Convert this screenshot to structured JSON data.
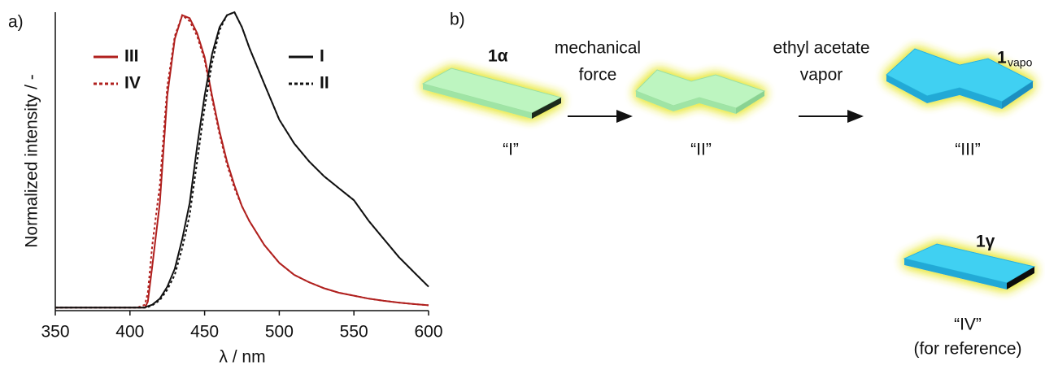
{
  "panel_a_label": "a)",
  "chart_data": {
    "type": "line",
    "x_label": "λ / nm",
    "y_label": "Normalized intensity / -",
    "xlim": [
      350,
      600
    ],
    "ylim": [
      0,
      1
    ],
    "xticks": [
      350,
      400,
      450,
      500,
      550,
      600
    ],
    "x": [
      350,
      360,
      370,
      380,
      390,
      400,
      405,
      410,
      412,
      415,
      420,
      425,
      430,
      435,
      440,
      445,
      450,
      455,
      460,
      465,
      470,
      475,
      480,
      490,
      500,
      510,
      520,
      530,
      540,
      550,
      560,
      570,
      580,
      590,
      600
    ],
    "series": [
      {
        "name": "III",
        "color": "#b0201e",
        "dash": false,
        "values": [
          0.01,
          0.01,
          0.01,
          0.01,
          0.01,
          0.01,
          0.01,
          0.01,
          0.03,
          0.15,
          0.36,
          0.72,
          0.91,
          0.99,
          0.98,
          0.93,
          0.85,
          0.72,
          0.6,
          0.5,
          0.42,
          0.35,
          0.3,
          0.22,
          0.16,
          0.12,
          0.095,
          0.075,
          0.06,
          0.05,
          0.04,
          0.033,
          0.027,
          0.022,
          0.018
        ]
      },
      {
        "name": "IV",
        "color": "#b0201e",
        "dash": true,
        "values": [
          0.01,
          0.01,
          0.01,
          0.01,
          0.01,
          0.01,
          0.01,
          0.02,
          0.06,
          0.22,
          0.42,
          0.75,
          0.92,
          0.99,
          0.97,
          0.92,
          0.84,
          0.71,
          0.59,
          0.49,
          0.41,
          0.35,
          0.3,
          0.22,
          0.16,
          0.12,
          0.095,
          0.075,
          0.06,
          0.05,
          0.04,
          0.033,
          0.027,
          0.022,
          0.018
        ]
      },
      {
        "name": "I",
        "color": "#111111",
        "dash": false,
        "values": [
          0.01,
          0.01,
          0.01,
          0.01,
          0.01,
          0.01,
          0.01,
          0.01,
          0.015,
          0.02,
          0.04,
          0.08,
          0.14,
          0.24,
          0.36,
          0.55,
          0.72,
          0.86,
          0.95,
          0.99,
          1.0,
          0.95,
          0.88,
          0.76,
          0.64,
          0.56,
          0.5,
          0.45,
          0.41,
          0.37,
          0.3,
          0.24,
          0.18,
          0.13,
          0.08
        ]
      },
      {
        "name": "II",
        "color": "#111111",
        "dash": true,
        "values": [
          0.01,
          0.01,
          0.01,
          0.01,
          0.01,
          0.01,
          0.01,
          0.01,
          0.012,
          0.018,
          0.035,
          0.07,
          0.12,
          0.21,
          0.32,
          0.5,
          0.68,
          0.83,
          0.94,
          0.99,
          1.0,
          0.95,
          0.88,
          0.76,
          0.64,
          0.56,
          0.5,
          0.45,
          0.41,
          0.37,
          0.3,
          0.24,
          0.18,
          0.13,
          0.08
        ]
      }
    ]
  },
  "diagram": {
    "panel_label": "b)",
    "crystals": [
      {
        "label": "1α",
        "state": "“I”"
      },
      {
        "state": "“II”"
      },
      {
        "label": "1",
        "subscript": "vapo",
        "state": "“III”"
      },
      {
        "label": "1γ",
        "state": "“IV”",
        "note": "(for reference)"
      }
    ],
    "arrows": [
      {
        "label_lines": [
          "mechanical",
          "force"
        ]
      },
      {
        "label_lines": [
          "ethyl acetate",
          "vapor"
        ]
      }
    ]
  }
}
